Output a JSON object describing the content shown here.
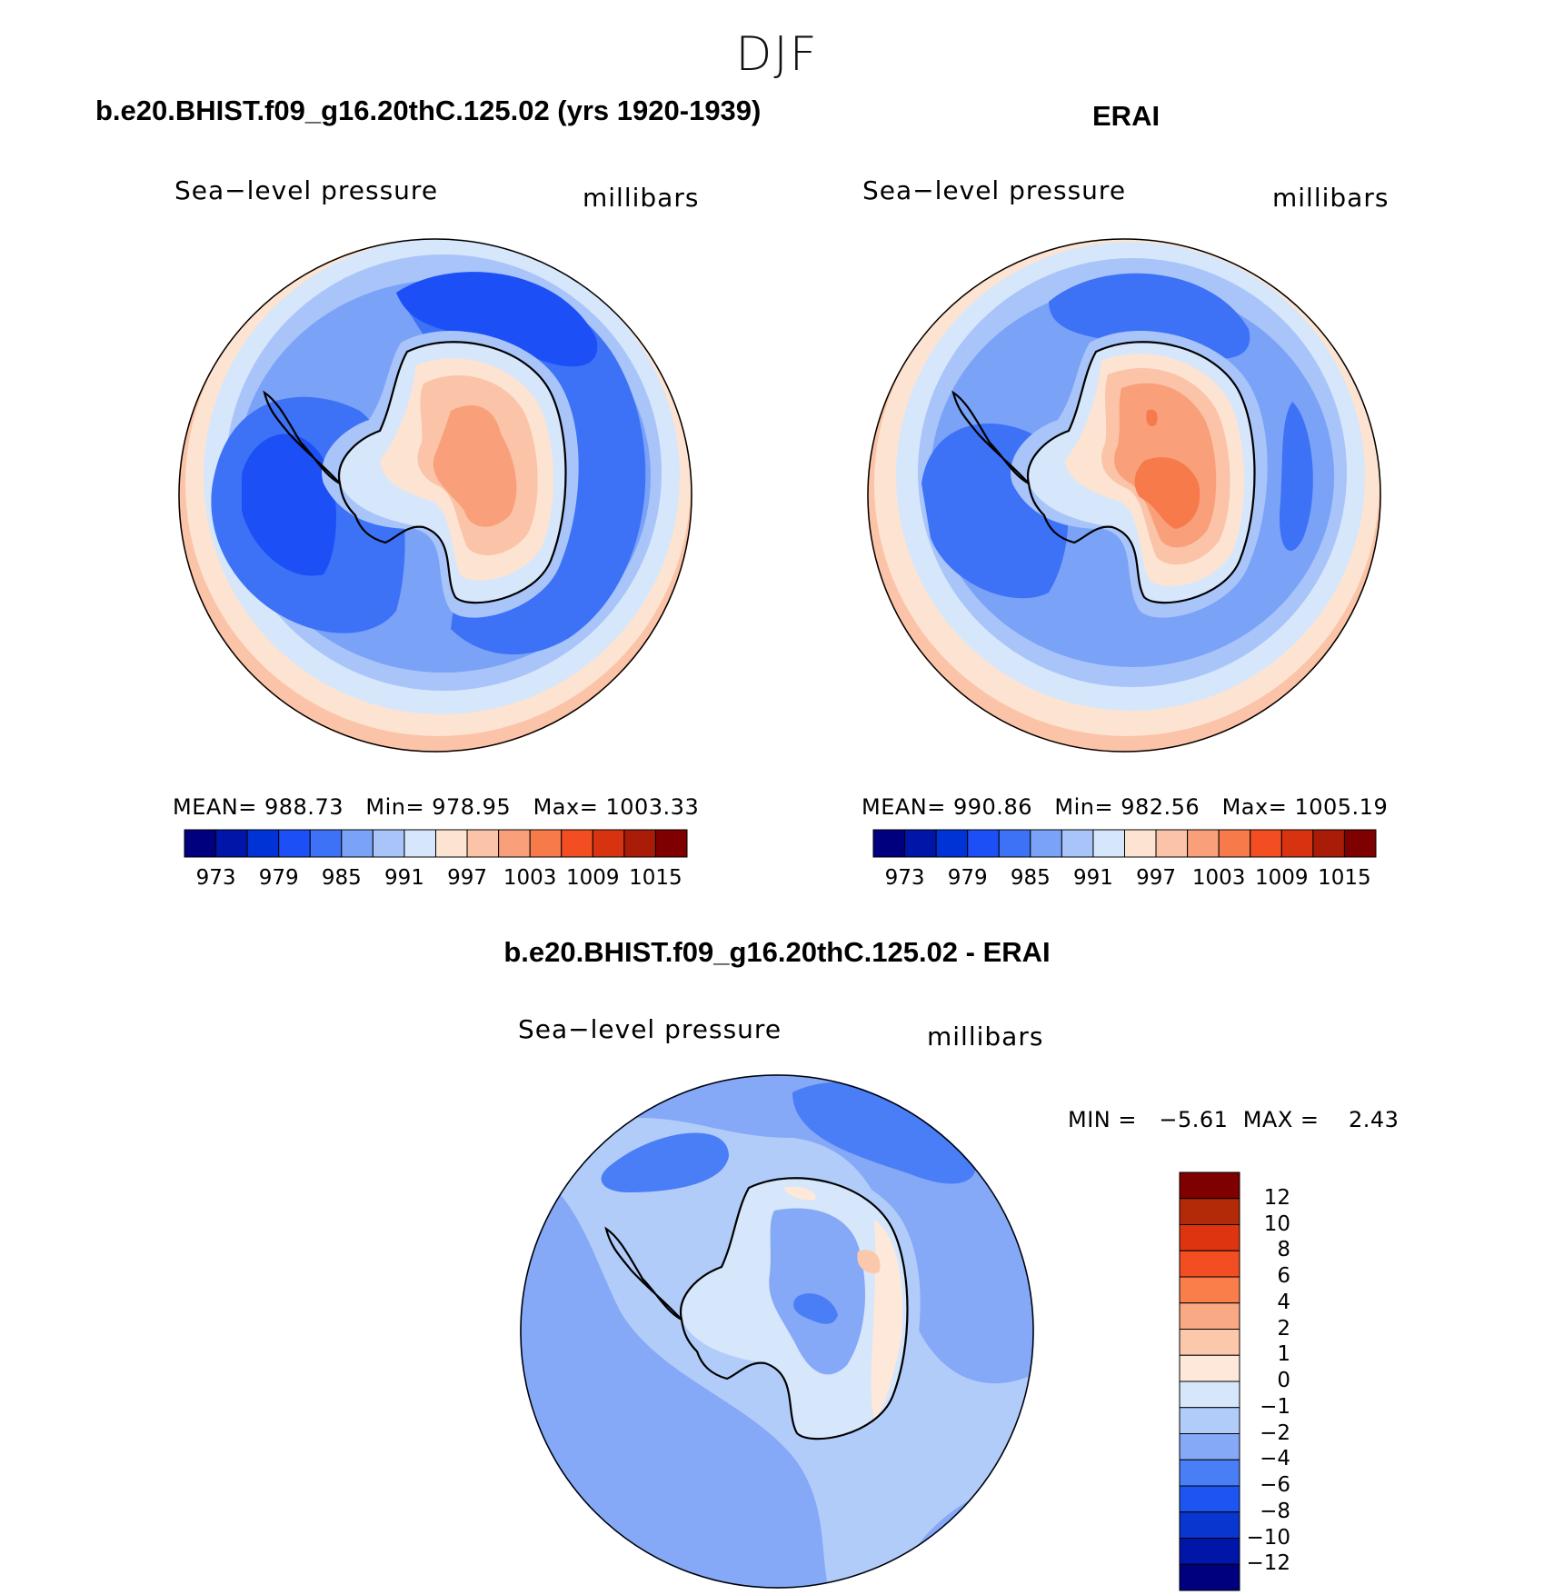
{
  "figure": {
    "season": "DJF"
  },
  "panels": [
    {
      "id": "model",
      "case_title": "b.e20.BHIST.f09_g16.20thC.125.02 (yrs 1920-1939)",
      "variable": "Sea−level pressure",
      "units": "millibars",
      "stats": {
        "mean_label": "MEAN=",
        "mean": "988.73",
        "min_label": "Min=",
        "min": "978.95",
        "max_label": "Max=",
        "max": "1003.33"
      }
    },
    {
      "id": "obs",
      "case_title": "ERAI",
      "variable": "Sea−level pressure",
      "units": "millibars",
      "stats": {
        "mean_label": "MEAN=",
        "mean": "990.86",
        "min_label": "Min=",
        "min": "982.56",
        "max_label": "Max=",
        "max": "1005.19"
      }
    },
    {
      "id": "diff",
      "case_title": "b.e20.BHIST.f09_g16.20thC.125.02 - ERAI",
      "variable": "Sea−level pressure",
      "units": "millibars",
      "stats": {
        "min_label": "MIN =",
        "min": "−5.61",
        "max_label": "MAX =",
        "max": "2.43"
      }
    }
  ],
  "chart_data": [
    {
      "type": "heatmap",
      "projection": "south-polar-stereographic",
      "title": "b.e20.BHIST.f09_g16.20thC.125.02 (yrs 1920-1939)",
      "variable": "Sea-level pressure",
      "units": "millibars",
      "mean": 988.73,
      "min": 978.95,
      "max": 1003.33,
      "colorbar": {
        "levels": [
          973,
          976,
          979,
          982,
          985,
          988,
          991,
          994,
          997,
          1000,
          1003,
          1006,
          1009,
          1012,
          1015
        ],
        "tick_labels": [
          "973",
          "979",
          "985",
          "991",
          "997",
          "1003",
          "1009",
          "1015"
        ],
        "colors": [
          "#00007f",
          "#0016a8",
          "#0033d6",
          "#1c4ff5",
          "#3d72f7",
          "#7aa2f7",
          "#a8c4f9",
          "#d6e6fb",
          "#fde4d2",
          "#fbc4a8",
          "#f9a07a",
          "#f77a4b",
          "#f24e22",
          "#d83310",
          "#a81c08",
          "#7f0000"
        ]
      }
    },
    {
      "type": "heatmap",
      "projection": "south-polar-stereographic",
      "title": "ERAI",
      "variable": "Sea-level pressure",
      "units": "millibars",
      "mean": 990.86,
      "min": 982.56,
      "max": 1005.19,
      "colorbar": {
        "levels": [
          973,
          976,
          979,
          982,
          985,
          988,
          991,
          994,
          997,
          1000,
          1003,
          1006,
          1009,
          1012,
          1015
        ],
        "tick_labels": [
          "973",
          "979",
          "985",
          "991",
          "997",
          "1003",
          "1009",
          "1015"
        ],
        "colors": [
          "#00007f",
          "#0016a8",
          "#0033d6",
          "#1c4ff5",
          "#3d72f7",
          "#7aa2f7",
          "#a8c4f9",
          "#d6e6fb",
          "#fde4d2",
          "#fbc4a8",
          "#f9a07a",
          "#f77a4b",
          "#f24e22",
          "#d83310",
          "#a81c08",
          "#7f0000"
        ]
      }
    },
    {
      "type": "heatmap",
      "projection": "south-polar-stereographic",
      "title": "b.e20.BHIST.f09_g16.20thC.125.02 - ERAI",
      "variable": "Sea-level pressure",
      "units": "millibars",
      "min": -5.61,
      "max": 2.43,
      "colorbar": {
        "orientation": "vertical",
        "levels": [
          -12,
          -10,
          -8,
          -6,
          -4,
          -2,
          -1,
          0,
          1,
          2,
          4,
          6,
          8,
          10,
          12
        ],
        "tick_labels": [
          "12",
          "10",
          "8",
          "6",
          "4",
          "2",
          "1",
          "0",
          "−1",
          "−2",
          "−4",
          "−6",
          "−8",
          "−10",
          "−12"
        ],
        "colors": [
          "#7f0000",
          "#b22a08",
          "#de3510",
          "#f24e22",
          "#f97e4a",
          "#f9aa85",
          "#fcc8ac",
          "#fde8da",
          "#d6e6fb",
          "#b2ccfa",
          "#86a9f7",
          "#4a7ef6",
          "#1c55f2",
          "#0a36d0",
          "#0016a8",
          "#00007f"
        ]
      }
    }
  ]
}
